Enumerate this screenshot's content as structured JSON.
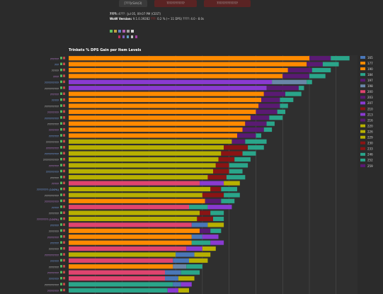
{
  "top_buttons": [
    {
      "label": "[???]cSirk(3)",
      "color": "#3a3a3a"
    },
    {
      "label": "????????????",
      "color": "#5a2323"
    },
    {
      "label": "??????????????",
      "color": "#5a2323"
    }
  ],
  "sim_info": {
    "line1_label": "????:",
    "line1_value": "4??? : Jul 05, 09:07 PM (CEST)",
    "line2_label": "WoW Version:",
    "line2_value": "9.1.0.39282",
    "line2_extra_label": "???:",
    "line2_extra_value": "0.2 % (~ 11 DPS)",
    "line2_extra2_label": "????:",
    "line2_extra2_value": "4.0 - 8.0s"
  },
  "chart_data": {
    "type": "bar",
    "stacked": true,
    "orientation": "horizontal",
    "title": "Trinkets % DPS Gain per Item Levels",
    "legend_position": "right",
    "grid": true,
    "levels": [
      "165",
      "177",
      "190",
      "184",
      "197",
      "198",
      "200",
      "203",
      "207",
      "210",
      "213",
      "216",
      "220",
      "226",
      "229",
      "230",
      "233",
      "246",
      "252",
      "259"
    ],
    "colors": {
      "orange": "#ff8a00",
      "purple": "#5a1a73",
      "teal": "#2aa58a",
      "olive": "#b7b000",
      "darkred": "#8a1414",
      "pink": "#e0446f",
      "blue": "#4a77b8",
      "violet": "#8a3ad1",
      "steel": "#6a86a8"
    },
    "legend_colors": [
      "#4a77b8",
      "#ff8a00",
      "#ff8a00",
      "#2aa58a",
      "#5a1a73",
      "#6a86a8",
      "#e0446f",
      "#5a1a73",
      "#8a3ad1",
      "#8a1414",
      "#8a3ad1",
      "#5a1a73",
      "#b7b000",
      "#b7b000",
      "#b7b000",
      "#8a1414",
      "#8a1414",
      "#2aa58a",
      "#2aa58a",
      "#5a1a73"
    ],
    "rows": [
      {
        "label": "??????",
        "segments": [
          [
            "orange",
            9.0
          ],
          [
            "purple",
            0.8
          ],
          [
            "teal",
            0.7
          ]
        ]
      },
      {
        "label": "???",
        "segments": [
          [
            "orange",
            8.9
          ],
          [
            "purple",
            0.6
          ],
          [
            "teal",
            0.6
          ]
        ]
      },
      {
        "label": "?????",
        "segments": [
          [
            "orange",
            8.2
          ],
          [
            "purple",
            0.9
          ],
          [
            "teal",
            0.7
          ]
        ]
      },
      {
        "label": "????",
        "segments": [
          [
            "orange",
            8.0
          ],
          [
            "purple",
            1.0
          ],
          [
            "teal",
            0.6
          ]
        ]
      },
      {
        "label": "??????????",
        "segments": [
          [
            "violet",
            7.6
          ],
          [
            "steel",
            1.3
          ],
          [
            "teal",
            0.2
          ]
        ]
      },
      {
        "label": "??????????",
        "segments": [
          [
            "violet",
            7.4
          ],
          [
            "purple",
            1.2
          ],
          [
            "teal",
            0.2
          ]
        ]
      },
      {
        "label": "??????",
        "segments": [
          [
            "orange",
            7.3
          ],
          [
            "purple",
            0.8
          ],
          [
            "teal",
            0.6
          ]
        ]
      },
      {
        "label": "?????",
        "segments": [
          [
            "orange",
            7.2
          ],
          [
            "purple",
            0.7
          ],
          [
            "teal",
            0.5
          ]
        ]
      },
      {
        "label": "??????????",
        "segments": [
          [
            "orange",
            7.1
          ],
          [
            "purple",
            0.8
          ],
          [
            "teal",
            0.3
          ]
        ]
      },
      {
        "label": "????????",
        "segments": [
          [
            "orange",
            7.0
          ],
          [
            "purple",
            0.8
          ],
          [
            "teal",
            0.3
          ]
        ]
      },
      {
        "label": "??????????",
        "segments": [
          [
            "orange",
            6.8
          ],
          [
            "purple",
            0.7
          ],
          [
            "teal",
            0.5
          ]
        ]
      },
      {
        "label": "????????",
        "segments": [
          [
            "orange",
            6.6
          ],
          [
            "purple",
            0.8
          ],
          [
            "teal",
            0.3
          ]
        ]
      },
      {
        "label": "???????",
        "segments": [
          [
            "orange",
            6.5
          ],
          [
            "purple",
            0.8
          ],
          [
            "teal",
            0.3
          ]
        ]
      },
      {
        "label": "???????",
        "segments": [
          [
            "orange",
            6.3
          ],
          [
            "purple",
            0.7
          ],
          [
            "teal",
            0.2
          ]
        ]
      },
      {
        "label": "?????????",
        "segments": [
          [
            "olive",
            6.1
          ],
          [
            "purple",
            0.5
          ],
          [
            "teal",
            0.8
          ]
        ]
      },
      {
        "label": "?????????",
        "segments": [
          [
            "olive",
            5.8
          ],
          [
            "darkred",
            0.9
          ],
          [
            "teal",
            0.6
          ]
        ]
      },
      {
        "label": "??????????",
        "segments": [
          [
            "olive",
            5.7
          ],
          [
            "darkred",
            0.8
          ],
          [
            "teal",
            0.5
          ]
        ]
      },
      {
        "label": "???????????",
        "segments": [
          [
            "olive",
            5.6
          ],
          [
            "darkred",
            0.6
          ],
          [
            "teal",
            0.6
          ]
        ]
      },
      {
        "label": "???????",
        "segments": [
          [
            "olive",
            5.5
          ],
          [
            "darkred",
            0.5
          ],
          [
            "teal",
            0.7
          ]
        ]
      },
      {
        "label": "?????????",
        "segments": [
          [
            "olive",
            5.4
          ],
          [
            "darkred",
            0.6
          ],
          [
            "teal",
            0.5
          ]
        ]
      },
      {
        "label": "??????",
        "segments": [
          [
            "olive",
            5.2
          ],
          [
            "darkred",
            0.7
          ],
          [
            "teal",
            0.7
          ]
        ]
      },
      {
        "label": "?????",
        "segments": [
          [
            "pink",
            4.9
          ],
          [
            "violet",
            0.9
          ],
          [
            "olive",
            0.6
          ]
        ]
      },
      {
        "label": "???????? (100%)",
        "segments": [
          [
            "olive",
            5.3
          ],
          [
            "darkred",
            0.4
          ],
          [
            "teal",
            0.6
          ]
        ]
      },
      {
        "label": "??????????",
        "segments": [
          [
            "olive",
            5.0
          ],
          [
            "darkred",
            0.8
          ],
          [
            "teal",
            0.6
          ]
        ]
      },
      {
        "label": "??????????",
        "segments": [
          [
            "orange",
            5.1
          ],
          [
            "purple",
            0.6
          ],
          [
            "teal",
            0.5
          ]
        ]
      },
      {
        "label": "?????",
        "segments": [
          [
            "pink",
            4.5
          ],
          [
            "teal",
            0.7
          ],
          [
            "violet",
            0.9
          ]
        ]
      },
      {
        "label": "???????",
        "segments": [
          [
            "olive",
            4.9
          ],
          [
            "darkred",
            0.4
          ],
          [
            "teal",
            0.5
          ]
        ]
      },
      {
        "label": "???????? (100%)",
        "segments": [
          [
            "olive",
            4.8
          ],
          [
            "darkred",
            0.6
          ],
          [
            "teal",
            0.4
          ]
        ]
      },
      {
        "label": "??????",
        "segments": [
          [
            "pink",
            4.6
          ],
          [
            "blue",
            0.6
          ],
          [
            "olive",
            0.6
          ]
        ]
      },
      {
        "label": "???????",
        "segments": [
          [
            "orange",
            4.9
          ],
          [
            "purple",
            0.4
          ],
          [
            "teal",
            0.4
          ]
        ]
      },
      {
        "label": "????????",
        "segments": [
          [
            "orange",
            4.6
          ],
          [
            "blue",
            0.4
          ],
          [
            "violet",
            0.6
          ]
        ]
      },
      {
        "label": "??????",
        "segments": [
          [
            "orange",
            4.6
          ],
          [
            "teal",
            0.7
          ],
          [
            "violet",
            0.5
          ]
        ]
      },
      {
        "label": "???????",
        "segments": [
          [
            "pink",
            4.4
          ],
          [
            "violet",
            0.6
          ],
          [
            "olive",
            0.5
          ]
        ]
      },
      {
        "label": "??????????",
        "segments": [
          [
            "olive",
            4.0
          ],
          [
            "blue",
            0.7
          ],
          [
            "olive",
            0.6
          ]
        ]
      },
      {
        "label": "??????",
        "segments": [
          [
            "pink",
            3.9
          ],
          [
            "blue",
            0.6
          ],
          [
            "olive",
            0.7
          ]
        ]
      },
      {
        "label": "???????",
        "segments": [
          [
            "orange",
            3.9
          ],
          [
            "steel",
            0.5
          ],
          [
            "teal",
            0.6
          ]
        ]
      },
      {
        "label": "????????",
        "segments": [
          [
            "pink",
            3.6
          ],
          [
            "blue",
            0.6
          ],
          [
            "teal",
            0.7
          ]
        ]
      },
      {
        "label": "???????",
        "segments": [
          [
            "pink",
            3.6
          ],
          [
            "blue",
            0.5
          ],
          [
            "olive",
            0.6
          ]
        ]
      },
      {
        "label": "??????????",
        "segments": [
          [
            "teal",
            3.9
          ],
          [
            "blue",
            0.3
          ],
          [
            "violet",
            0.4
          ]
        ]
      },
      {
        "label": "????????",
        "segments": [
          [
            "teal",
            3.7
          ],
          [
            "violet",
            0.4
          ],
          [
            "olive",
            0.4
          ]
        ]
      }
    ]
  }
}
